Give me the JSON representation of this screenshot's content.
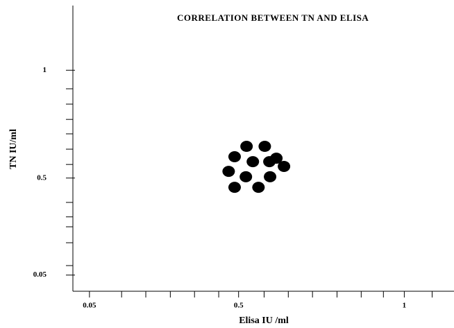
{
  "chart_data": {
    "type": "scatter",
    "title": "CORRELATION BETWEEN TN AND ELISA",
    "x_label": "Elisa IU /ml",
    "y_label": "TN IU/ml",
    "series": [
      {
        "color": "#000000",
        "x": [
          0.524,
          0.579,
          0.488,
          0.614,
          0.543,
          0.593,
          0.637,
          0.47,
          0.522,
          0.595,
          0.488,
          0.56
        ],
        "values": [
          0.647,
          0.647,
          0.599,
          0.592,
          0.576,
          0.576,
          0.554,
          0.531,
          0.506,
          0.506,
          0.457,
          0.457
        ]
      }
    ],
    "xlim": [
      0,
      1.15
    ],
    "ylim": [
      -0.025,
      1.3
    ],
    "xticks": [
      0.05,
      0.5,
      1
    ],
    "yticks": [
      0.05,
      0.5,
      1
    ],
    "xminor_ticks": [
      0.147,
      0.22,
      0.294,
      0.367,
      0.44,
      0.577,
      0.65,
      0.723,
      0.797,
      0.87,
      0.937,
      1.084
    ],
    "yminor_ticks": [
      0.914,
      0.843,
      0.772,
      0.705,
      0.634,
      0.563,
      0.387,
      0.32,
      0.274,
      0.2,
      0.094
    ]
  }
}
